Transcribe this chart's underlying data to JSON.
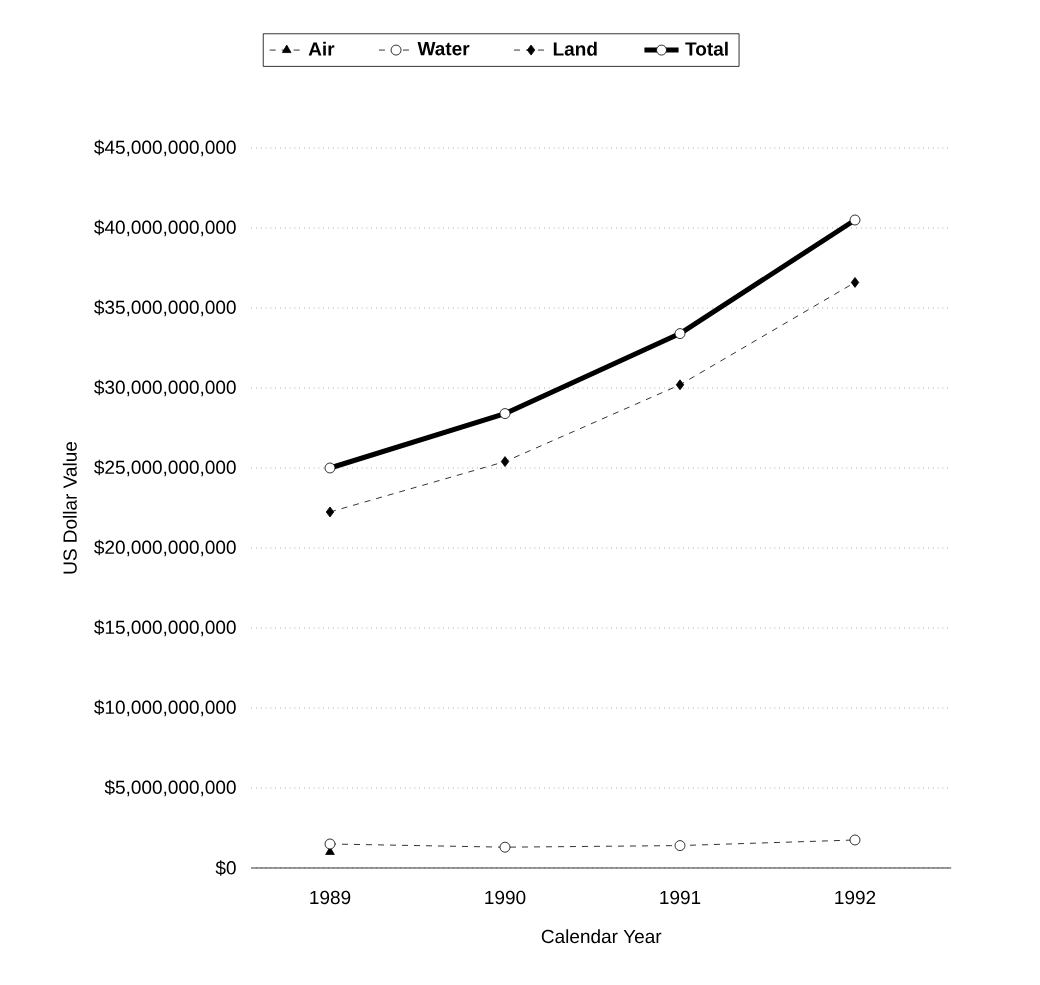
{
  "chart_data": {
    "type": "line",
    "xlabel": "Calendar Year",
    "ylabel": "US Dollar Value",
    "categories": [
      "1989",
      "1990",
      "1991",
      "1992"
    ],
    "series": [
      {
        "name": "Air",
        "color": "#000000",
        "marker": "triangle",
        "line_style": "dashed",
        "values": [
          1000000000,
          null,
          null,
          null
        ]
      },
      {
        "name": "Water",
        "color": "#000000",
        "marker": "circle",
        "line_style": "dashed",
        "values": [
          1500000000,
          1300000000,
          1400000000,
          1750000000
        ]
      },
      {
        "name": "Land",
        "color": "#000000",
        "marker": "diamond",
        "line_style": "dashed",
        "values": [
          22250000000,
          25400000000,
          30200000000,
          36600000000
        ]
      },
      {
        "name": "Total",
        "color": "#000000",
        "marker": "circle",
        "line_style": "solid",
        "values": [
          25000000000,
          28400000000,
          33400000000,
          40500000000
        ]
      }
    ],
    "ylim": [
      0,
      45000000000
    ],
    "yticks": [
      {
        "value": 0,
        "label": "$0"
      },
      {
        "value": 5000000000,
        "label": "$5,000,000,000"
      },
      {
        "value": 10000000000,
        "label": "$10,000,000,000"
      },
      {
        "value": 15000000000,
        "label": "$15,000,000,000"
      },
      {
        "value": 20000000000,
        "label": "$20,000,000,000"
      },
      {
        "value": 25000000000,
        "label": "$25,000,000,000"
      },
      {
        "value": 30000000000,
        "label": "$30,000,000,000"
      },
      {
        "value": 35000000000,
        "label": "$35,000,000,000"
      },
      {
        "value": 40000000000,
        "label": "$40,000,000,000"
      },
      {
        "value": 45000000000,
        "label": "$45,000,000,000"
      }
    ],
    "grid": "y",
    "legend": "top"
  }
}
